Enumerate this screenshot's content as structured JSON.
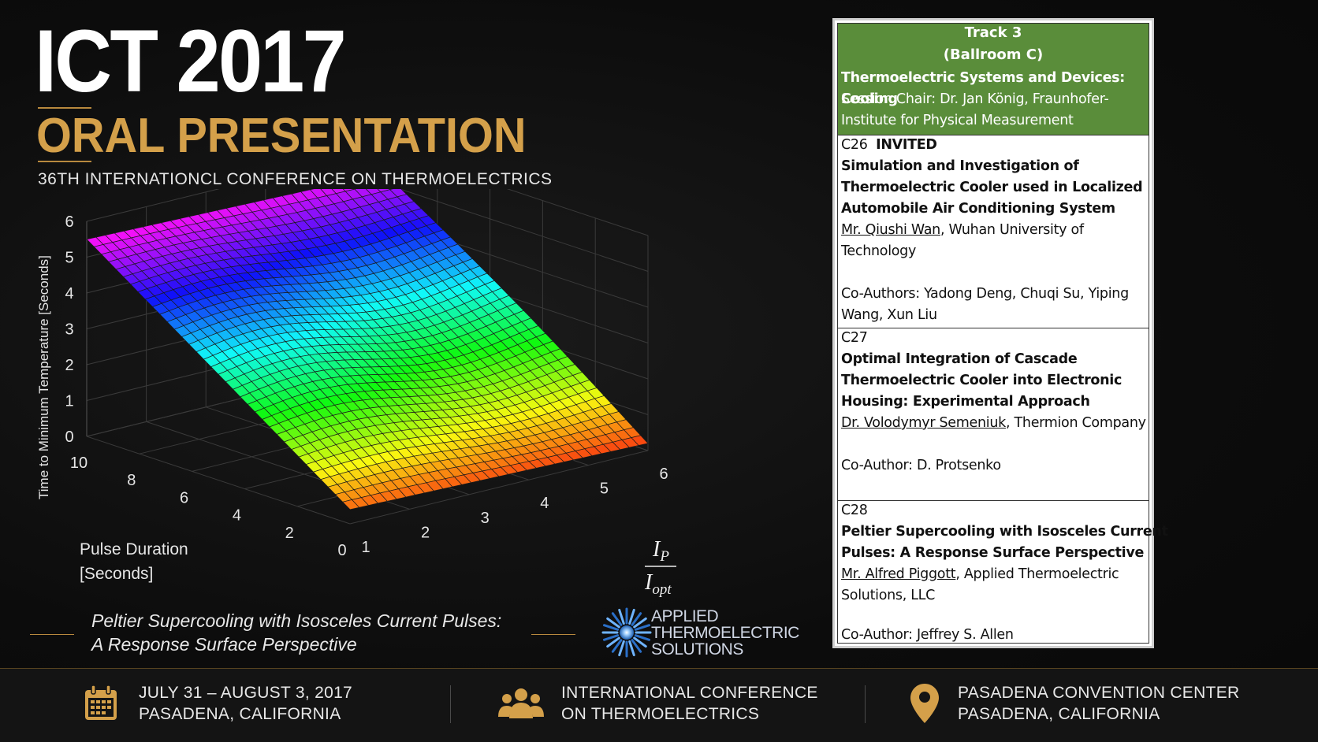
{
  "header": {
    "title": "ICT 2017",
    "subtitle": "ORAL PRESENTATION",
    "conference": "36TH INTERNATIONCL CONFERENCE ON THERMOELECTRICS"
  },
  "chart_data": {
    "type": "surface3d",
    "zlabel": "Time to Minimum Temperature [Seconds]",
    "ylabel_line1": "Pulse Duration",
    "ylabel_line2": "[Seconds]",
    "xlabel_num": "I",
    "xlabel_num_sub": "P",
    "xlabel_den": "I",
    "xlabel_den_sub": "opt",
    "x_ticks": [
      "1",
      "2",
      "3",
      "4",
      "5",
      "6"
    ],
    "y_ticks": [
      "0",
      "2",
      "4",
      "6",
      "8",
      "10"
    ],
    "z_ticks": [
      "0",
      "1",
      "2",
      "3",
      "4",
      "5",
      "6"
    ],
    "xlim": [
      1,
      6
    ],
    "ylim": [
      0,
      10
    ],
    "zlim": [
      0,
      6
    ],
    "colormap": "hsv",
    "corner_values": {
      "x1_y0": 0.4,
      "x6_y0": 0.2,
      "x1_y10": 5.5,
      "x6_y10": 5.3
    }
  },
  "caption": {
    "line1": "Peltier Supercooling with Isosceles Current Pulses:",
    "line2": "A Response Surface Perspective"
  },
  "logo": {
    "line1": "APPLIED",
    "line2": "THERMOELECTRIC",
    "line3": "SOLUTIONS",
    "icon": "starburst-logo-icon"
  },
  "footer": {
    "date_line1": "JULY 31 – AUGUST 3, 2017",
    "date_line2": "PASADENA, CALIFORNIA",
    "conf_line1": "INTERNATIONAL CONFERENCE",
    "conf_line2": "ON THERMOELECTRICS",
    "venue_line1": "PASADENA CONVENTION CENTER",
    "venue_line2": "PASADENA, CALIFORNIA",
    "icons": [
      "calendar-icon",
      "people-icon",
      "location-pin-icon"
    ],
    "accent": "#d4a04a"
  },
  "track": {
    "title_line1": "Track 3",
    "title_line2": "(Ballroom C)",
    "session": "Thermoelectric Systems and Devices: Cooling",
    "chair_line1": "Session Chair:  Dr. Jan König, Fraunhofer-",
    "chair_line2": "Institute for Physical Measurement",
    "header_color": "#5a8d3a",
    "papers": [
      {
        "code": "C26",
        "tag": "INVITED",
        "title": [
          "Simulation and Investigation of",
          "Thermoelectric Cooler used in Localized",
          "Automobile Air Conditioning System"
        ],
        "presenter": "Mr. Qiushi Wan",
        "affil_line1": ", Wuhan University of",
        "affil_line2": "Technology",
        "coauthors": [
          "Co-Authors:  Yadong Deng, Chuqi Su, Yiping",
          "Wang, Xun Liu"
        ]
      },
      {
        "code": "C27",
        "title": [
          "Optimal Integration of Cascade",
          "Thermoelectric Cooler into Electronic",
          "Housing: Experimental Approach"
        ],
        "presenter": "Dr. Volodymyr Semeniuk",
        "affil_line1": ", Thermion Company",
        "coauthors": [
          "Co-Author: D. Protsenko"
        ]
      },
      {
        "code": "C28",
        "title": [
          "Peltier Supercooling with Isosceles Current",
          "Pulses: A Response Surface Perspective"
        ],
        "presenter": "Mr. Alfred Piggott",
        "affil_line1": ", Applied Thermoelectric",
        "affil_line2": "Solutions, LLC",
        "coauthors": [
          "Co-Author:  Jeffrey S. Allen"
        ]
      }
    ]
  }
}
